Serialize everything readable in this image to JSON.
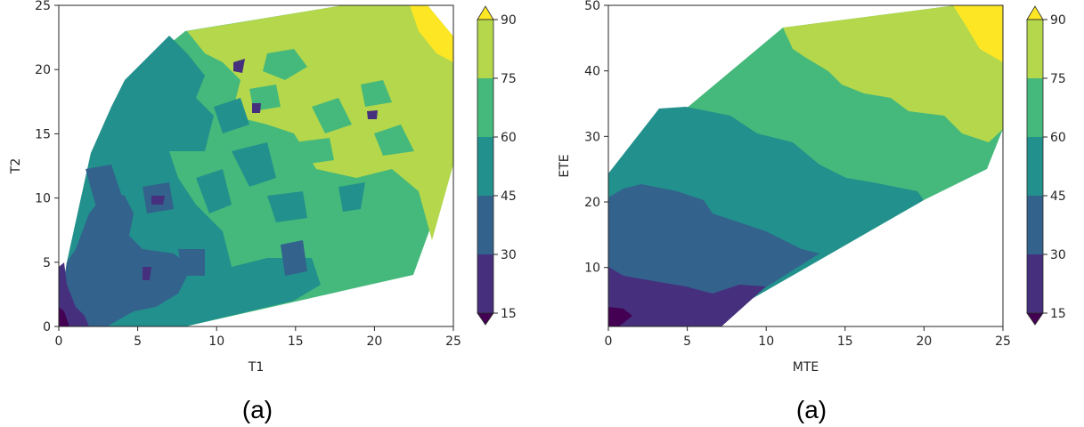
{
  "chart_data": [
    {
      "type": "contour",
      "panel_caption": "(a)",
      "xlabel": "T1",
      "ylabel": "T2",
      "xlim": [
        0,
        25
      ],
      "ylim": [
        0,
        25
      ],
      "xticks": [
        "0",
        "5",
        "10",
        "15",
        "20",
        "25"
      ],
      "yticks": [
        "0",
        "5",
        "10",
        "15",
        "20",
        "25"
      ],
      "colorbar": {
        "levels": [
          15,
          30,
          45,
          60,
          75,
          90
        ],
        "ticks": [
          "15",
          "30",
          "45",
          "60",
          "75",
          "90"
        ],
        "extend": "both",
        "colormap": "viridis"
      },
      "hull": [
        [
          0,
          0
        ],
        [
          8,
          0
        ],
        [
          22.5,
          4
        ],
        [
          25,
          12.5
        ],
        [
          25,
          22.5
        ],
        [
          23.5,
          25
        ],
        [
          18,
          25
        ],
        [
          8,
          23
        ],
        [
          4.5,
          19.5
        ],
        [
          2,
          13.5
        ],
        [
          0.5,
          5
        ],
        [
          0,
          1
        ]
      ],
      "trend": "values increase from about 15 near the origin to about 90 near T1 = 25, T2 = 25"
    },
    {
      "type": "contour",
      "panel_caption": "(a)",
      "xlabel": "MTE",
      "ylabel": "ETE",
      "xlim": [
        0,
        25
      ],
      "ylim": [
        1,
        50
      ],
      "xticks": [
        "0",
        "5",
        "10",
        "15",
        "20",
        "25"
      ],
      "yticks": [
        "10",
        "20",
        "30",
        "40",
        "50"
      ],
      "colorbar": {
        "levels": [
          15,
          30,
          45,
          60,
          75,
          90
        ],
        "ticks": [
          "15",
          "30",
          "45",
          "60",
          "75",
          "90"
        ],
        "extend": "both",
        "colormap": "viridis"
      },
      "hull": [
        [
          0,
          1
        ],
        [
          6,
          1
        ],
        [
          20,
          21
        ],
        [
          24,
          25
        ],
        [
          25,
          31
        ],
        [
          25,
          50
        ],
        [
          22,
          50
        ],
        [
          11,
          47
        ],
        [
          0,
          24
        ]
      ],
      "trend": "values increase from about 15 near MTE = 0, ETE = 1 to about 90 near MTE = 25, ETE = 50"
    }
  ],
  "colors": {
    "viridis": [
      "#440154",
      "#46307e",
      "#33628d",
      "#22908c",
      "#45b97b",
      "#b4d74b",
      "#fde725"
    ],
    "axis": "#262626"
  }
}
